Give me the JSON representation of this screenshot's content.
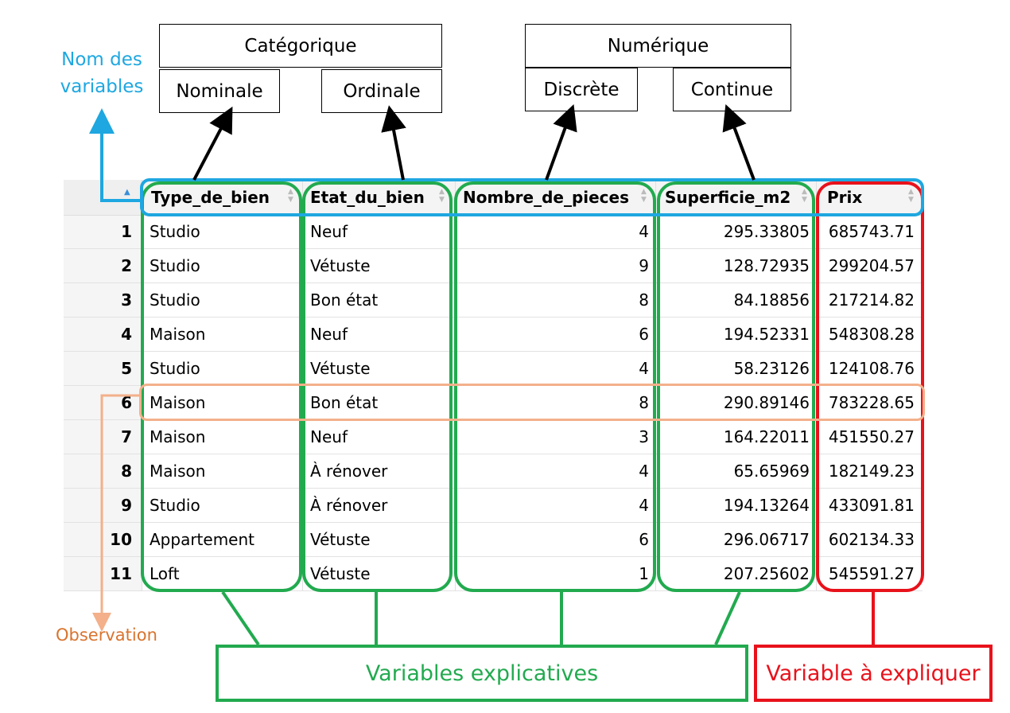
{
  "categories": {
    "categorique": "Catégorique",
    "nominale": "Nominale",
    "ordinale": "Ordinale",
    "numerique": "Numérique",
    "discrete": "Discrète",
    "continue": "Continue"
  },
  "annotations": {
    "nom_des_variables": "Nom des variables",
    "observation": "Observation",
    "variables_explicatives": "Variables explicatives",
    "variable_a_expliquer": "Variable à expliquer"
  },
  "colors": {
    "blue": "#1ea7e0",
    "green": "#22aa4f",
    "red": "#e8121b",
    "orange": "#f3b08a",
    "orange_text": "#d9742e"
  },
  "table": {
    "columns": [
      "Type_de_bien",
      "Etat_du_bien",
      "Nombre_de_pieces",
      "Superficie_m2",
      "Prix"
    ],
    "rows": [
      {
        "n": "1",
        "type": "Studio",
        "etat": "Neuf",
        "pieces": "4",
        "superficie": "295.33805",
        "prix": "685743.71"
      },
      {
        "n": "2",
        "type": "Studio",
        "etat": "Vétuste",
        "pieces": "9",
        "superficie": "128.72935",
        "prix": "299204.57"
      },
      {
        "n": "3",
        "type": "Studio",
        "etat": "Bon état",
        "pieces": "8",
        "superficie": "84.18856",
        "prix": "217214.82"
      },
      {
        "n": "4",
        "type": "Maison",
        "etat": "Neuf",
        "pieces": "6",
        "superficie": "194.52331",
        "prix": "548308.28"
      },
      {
        "n": "5",
        "type": "Studio",
        "etat": "Vétuste",
        "pieces": "4",
        "superficie": "58.23126",
        "prix": "124108.76"
      },
      {
        "n": "6",
        "type": "Maison",
        "etat": "Bon état",
        "pieces": "8",
        "superficie": "290.89146",
        "prix": "783228.65"
      },
      {
        "n": "7",
        "type": "Maison",
        "etat": "Neuf",
        "pieces": "3",
        "superficie": "164.22011",
        "prix": "451550.27"
      },
      {
        "n": "8",
        "type": "Maison",
        "etat": "À rénover",
        "pieces": "4",
        "superficie": "65.65969",
        "prix": "182149.23"
      },
      {
        "n": "9",
        "type": "Studio",
        "etat": "À rénover",
        "pieces": "4",
        "superficie": "194.13264",
        "prix": "433091.81"
      },
      {
        "n": "10",
        "type": "Appartement",
        "etat": "Vétuste",
        "pieces": "6",
        "superficie": "296.06717",
        "prix": "602134.33"
      },
      {
        "n": "11",
        "type": "Loft",
        "etat": "Vétuste",
        "pieces": "1",
        "superficie": "207.25602",
        "prix": "545591.27"
      }
    ]
  }
}
